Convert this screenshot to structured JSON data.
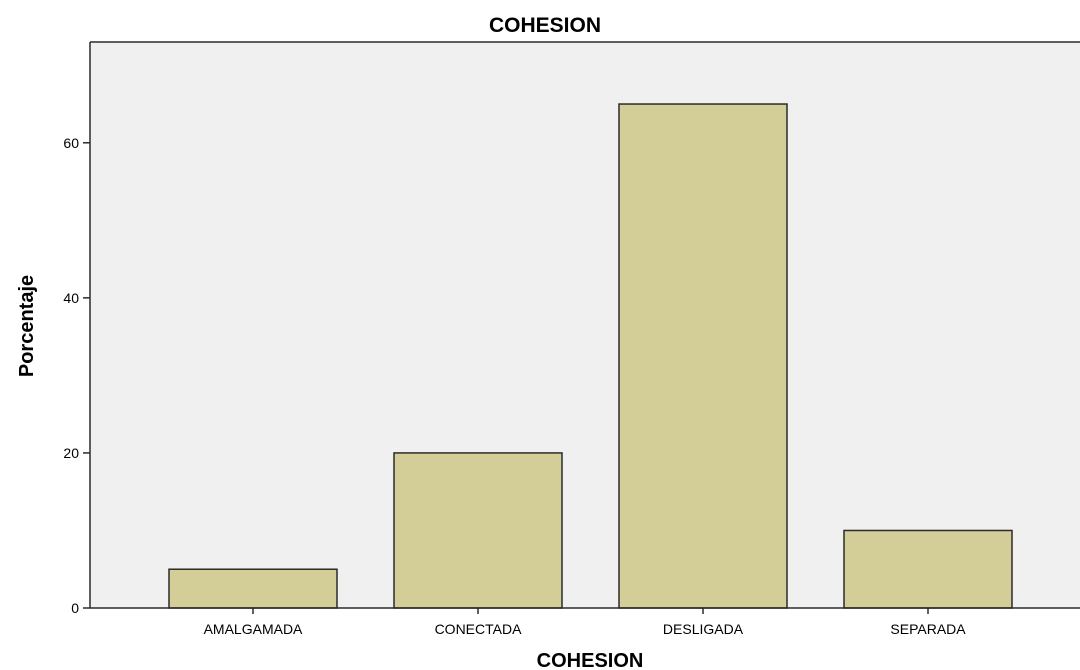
{
  "chart_data": {
    "type": "bar",
    "title": "COHESION",
    "xlabel": "COHESION",
    "ylabel": "Porcentaje",
    "categories": [
      "AMALGAMADA",
      "CONECTADA",
      "DESLIGADA",
      "SEPARADA"
    ],
    "values": [
      5,
      20,
      65,
      10
    ],
    "yticks": [
      0,
      20,
      40,
      60
    ],
    "ylim": [
      0,
      73
    ],
    "grid": false,
    "legend": "none",
    "colors": {
      "bar_fill": "#d3cd98",
      "bar_stroke": "#2b2b2b",
      "plot_background": "#f0f0f0",
      "axis": "#2b2b2b"
    }
  }
}
